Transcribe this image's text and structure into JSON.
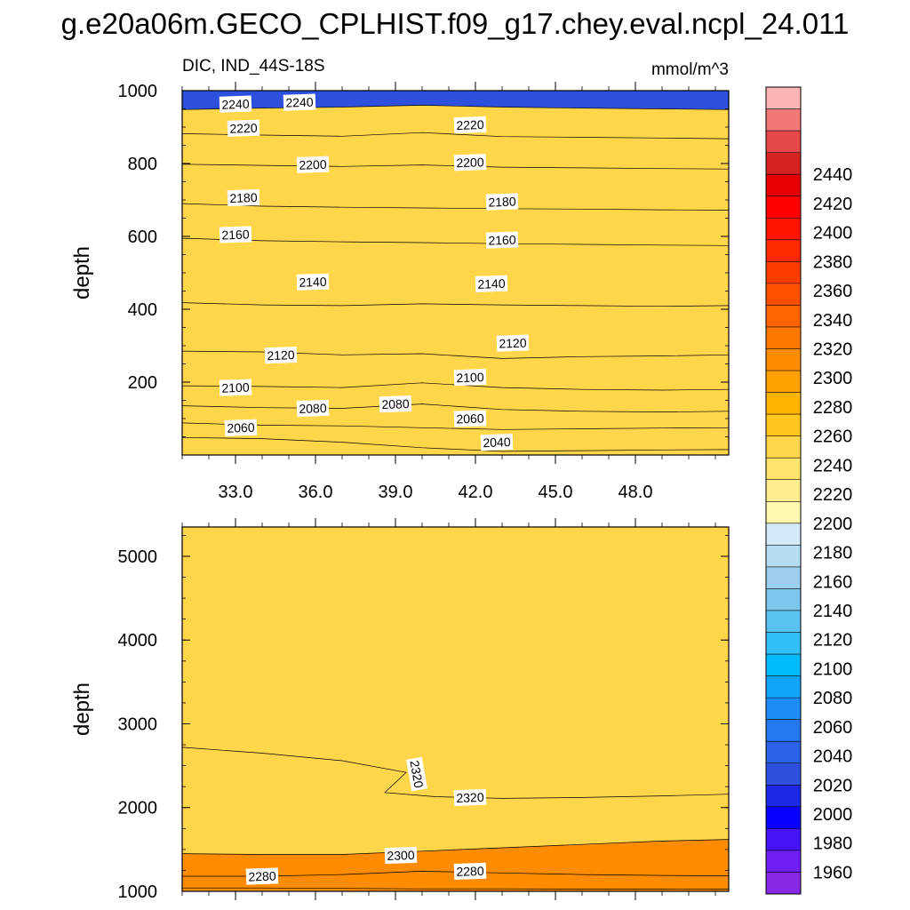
{
  "title": "g.e20a06m.GECO_CPLHIST.f09_g17.chey.eval.ncpl_24.011",
  "subtitle_left": "DIC, IND_44S-18S",
  "subtitle_right": "mmol/m^3",
  "chart_data": [
    {
      "type": "contour",
      "panel": "upper",
      "variable": "DIC",
      "region": "IND_44S-18S",
      "units": "mmol/m^3",
      "xlabel": "",
      "ylabel": "depth",
      "xlim": [
        31.0,
        51.5
      ],
      "ylim": [
        1000,
        0
      ],
      "x_ticks": [
        "33.0",
        "36.0",
        "39.0",
        "42.0",
        "45.0",
        "48.0"
      ],
      "x_tick_values": [
        33,
        36,
        39,
        42,
        45,
        48
      ],
      "y_ticks": [
        "200",
        "400",
        "600",
        "800",
        "1000"
      ],
      "y_tick_values": [
        200,
        400,
        600,
        800,
        1000
      ],
      "x": [
        31.0,
        34.0,
        37.0,
        40.0,
        43.0,
        46.0,
        49.0,
        51.5
      ],
      "contours": [
        {
          "level": 2040,
          "depth": [
            48,
            45,
            35,
            20,
            10,
            12,
            14,
            15
          ]
        },
        {
          "level": 2060,
          "depth": [
            88,
            82,
            80,
            75,
            70,
            72,
            74,
            75
          ]
        },
        {
          "level": 2080,
          "depth": [
            135,
            130,
            128,
            140,
            125,
            120,
            118,
            120
          ]
        },
        {
          "level": 2100,
          "depth": [
            190,
            188,
            185,
            198,
            185,
            180,
            178,
            180
          ]
        },
        {
          "level": 2120,
          "depth": [
            285,
            283,
            275,
            278,
            265,
            270,
            272,
            275
          ]
        },
        {
          "level": 2140,
          "depth": [
            418,
            412,
            410,
            415,
            412,
            410,
            408,
            410
          ]
        },
        {
          "level": 2160,
          "depth": [
            595,
            588,
            585,
            583,
            580,
            578,
            576,
            575
          ]
        },
        {
          "level": 2180,
          "depth": [
            690,
            683,
            680,
            678,
            676,
            675,
            673,
            672
          ]
        },
        {
          "level": 2200,
          "depth": [
            798,
            795,
            792,
            796,
            790,
            788,
            786,
            785
          ]
        },
        {
          "level": 2220,
          "depth": [
            882,
            878,
            875,
            885,
            874,
            872,
            870,
            868
          ]
        },
        {
          "level": 2240,
          "depth": [
            948,
            952,
            955,
            960,
            955,
            952,
            950,
            948
          ]
        }
      ],
      "contour_labels": [
        {
          "text": "2040",
          "x": 42.8,
          "depth": 35
        },
        {
          "text": "2060",
          "x": 33.2,
          "depth": 75
        },
        {
          "text": "2060",
          "x": 41.8,
          "depth": 100
        },
        {
          "text": "2080",
          "x": 35.9,
          "depth": 128
        },
        {
          "text": "2080",
          "x": 39.0,
          "depth": 140
        },
        {
          "text": "2100",
          "x": 33.0,
          "depth": 185
        },
        {
          "text": "2100",
          "x": 41.8,
          "depth": 213
        },
        {
          "text": "2120",
          "x": 34.7,
          "depth": 274
        },
        {
          "text": "2120",
          "x": 43.4,
          "depth": 307
        },
        {
          "text": "2140",
          "x": 35.9,
          "depth": 475
        },
        {
          "text": "2140",
          "x": 42.6,
          "depth": 470
        },
        {
          "text": "2160",
          "x": 33.0,
          "depth": 605
        },
        {
          "text": "2160",
          "x": 43.0,
          "depth": 590
        },
        {
          "text": "2180",
          "x": 33.3,
          "depth": 706
        },
        {
          "text": "2180",
          "x": 43.0,
          "depth": 695
        },
        {
          "text": "2200",
          "x": 35.9,
          "depth": 797
        },
        {
          "text": "2200",
          "x": 41.8,
          "depth": 803
        },
        {
          "text": "2220",
          "x": 33.3,
          "depth": 897
        },
        {
          "text": "2220",
          "x": 41.8,
          "depth": 906
        },
        {
          "text": "2240",
          "x": 33.0,
          "depth": 963
        },
        {
          "text": "2240",
          "x": 35.4,
          "depth": 968
        }
      ]
    },
    {
      "type": "contour",
      "panel": "lower",
      "variable": "DIC",
      "xlabel": "",
      "ylabel": "depth",
      "xlim": [
        31.0,
        51.5
      ],
      "ylim": [
        5350,
        1000
      ],
      "x_tick_values": [
        33,
        36,
        39,
        42,
        45,
        48
      ],
      "y_ticks": [
        "1000",
        "2000",
        "3000",
        "4000",
        "5000"
      ],
      "y_tick_values": [
        1000,
        2000,
        3000,
        4000,
        5000
      ],
      "x": [
        31.0,
        34.0,
        37.0,
        40.0,
        43.0,
        46.0,
        49.0,
        51.5
      ],
      "contours": [
        {
          "level": 2260,
          "depth": [
            1040,
            1040,
            1035,
            1030,
            1030,
            1028,
            1028,
            1027
          ]
        },
        {
          "level": 2280,
          "depth": [
            1180,
            1180,
            1200,
            1240,
            1220,
            1200,
            1190,
            1185
          ]
        },
        {
          "level": 2300,
          "depth": [
            1450,
            1440,
            1440,
            1480,
            1520,
            1560,
            1600,
            1620
          ]
        }
      ],
      "contour_labels": [
        {
          "text": "2280",
          "x": 34.0,
          "depth": 1180
        },
        {
          "text": "2300",
          "x": 39.2,
          "depth": 1430
        },
        {
          "text": "2280",
          "x": 41.8,
          "depth": 1240
        },
        {
          "text": "2320",
          "x": 41.8,
          "depth": 2120
        },
        {
          "text": "2320",
          "x": 39.8,
          "depth": 2400
        }
      ]
    },
    {
      "type": "colorbar",
      "levels": [
        1960,
        1980,
        2000,
        2020,
        2040,
        2060,
        2080,
        2100,
        2120,
        2140,
        2160,
        2180,
        2200,
        2220,
        2240,
        2260,
        2280,
        2300,
        2320,
        2340,
        2360,
        2380,
        2400,
        2420,
        2440
      ],
      "tick_labels": [
        "1960",
        "1980",
        "2000",
        "2020",
        "2040",
        "2060",
        "2080",
        "2100",
        "2120",
        "2140",
        "2160",
        "2180",
        "2200",
        "2220",
        "2240",
        "2260",
        "2280",
        "2300",
        "2320",
        "2340",
        "2360",
        "2380",
        "2400",
        "2420",
        "2440"
      ],
      "colors": [
        "#8428e6",
        "#6e1ef0",
        "#4514f5",
        "#0a00ff",
        "#1c28e6",
        "#2e50de",
        "#2a62e8",
        "#2578f0",
        "#1e8cf7",
        "#10a4fa",
        "#00bcff",
        "#30c0f5",
        "#58c2f0",
        "#7cc6ec",
        "#9ccfee",
        "#b8dcf2",
        "#d2eaf8",
        "#fff8b0",
        "#ffee90",
        "#ffe46c",
        "#ffd54a",
        "#ffc71e",
        "#ffb400",
        "#ffa200",
        "#ff8c00",
        "#ff7800",
        "#ff6400",
        "#ff5000",
        "#ff3c00",
        "#ff2800",
        "#ff1400",
        "#ff0000",
        "#e60000",
        "#d42222",
        "#e44848",
        "#f07878",
        "#fcb4b4"
      ]
    }
  ]
}
